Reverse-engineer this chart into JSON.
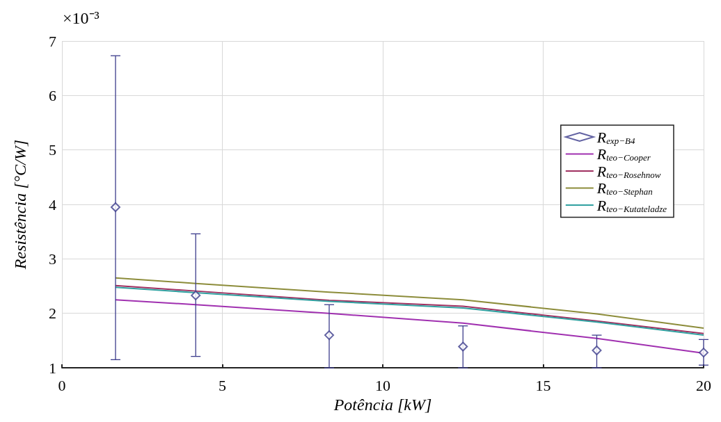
{
  "chart_data": {
    "type": "line",
    "xlabel": "Potência [kW]",
    "ylabel": "Resistência [°C/W]",
    "annotations": [
      "×10⁻³"
    ],
    "xlim": [
      0,
      20
    ],
    "xticks": [
      0,
      5,
      10,
      15,
      20
    ],
    "ylim": [
      1,
      7
    ],
    "yticks": [
      1,
      2,
      3,
      4,
      5,
      6,
      7
    ],
    "grid": true,
    "legend": "right",
    "x": [
      1.67,
      4.17,
      8.33,
      12.5,
      16.67,
      20
    ],
    "series": [
      {
        "name": "R$_{exp−B4}$",
        "type": "scatter",
        "marker": "diamond",
        "color": "#3c3c8c",
        "values": [
          3.95,
          2.33,
          1.6,
          1.39,
          1.32,
          1.28
        ],
        "errors": [
          [
            1.15,
            6.73
          ],
          [
            1.21,
            3.46
          ],
          [
            1.0,
            2.16
          ],
          [
            1.0,
            1.77
          ],
          [
            1.0,
            1.6
          ],
          [
            1.05,
            1.52
          ]
        ]
      },
      {
        "name": "R$_{teo−Cooper}$",
        "color": "#a030b0",
        "values": [
          2.25,
          2.16,
          2.0,
          1.82,
          1.54,
          1.27
        ]
      },
      {
        "name": "R$_{teo−Rosehnow}$",
        "color": "#a03060",
        "values": [
          2.51,
          2.41,
          2.24,
          2.13,
          1.86,
          1.63
        ]
      },
      {
        "name": "R$_{teo−Stephan}$",
        "color": "#8c8c3a",
        "values": [
          2.65,
          2.55,
          2.39,
          2.25,
          1.99,
          1.73
        ]
      },
      {
        "name": "R$_{teo−Kutateladze}$",
        "color": "#30a0a0",
        "values": [
          2.48,
          2.38,
          2.22,
          2.1,
          1.84,
          1.6
        ]
      }
    ]
  }
}
